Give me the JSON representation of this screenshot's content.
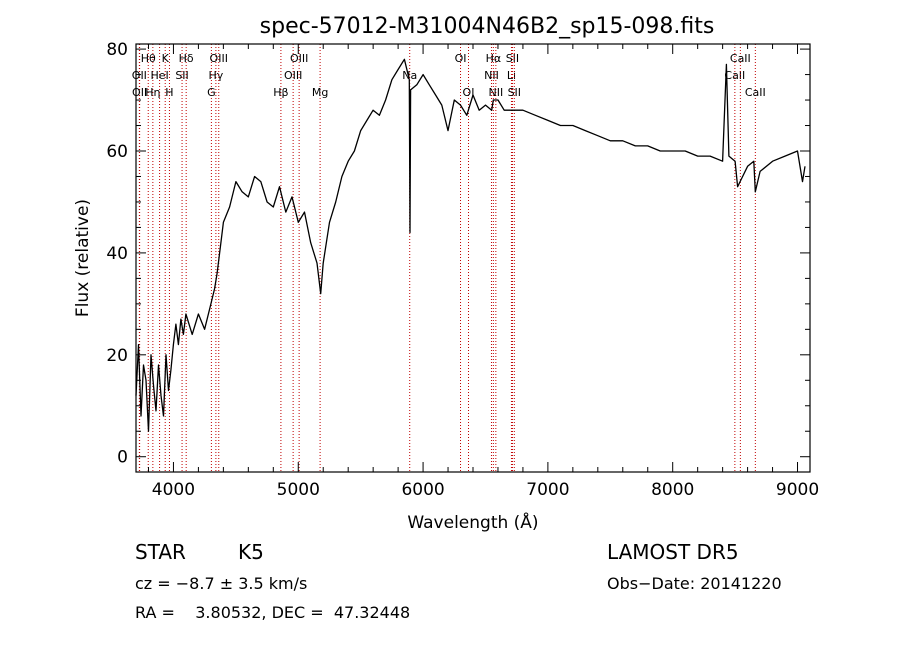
{
  "chart_data": {
    "type": "line",
    "title": "spec-57012-M31004N46B2_sp15-098.fits",
    "xlabel": "Wavelength (Å)",
    "ylabel": "Flux (relative)",
    "xlim": [
      3700,
      9100
    ],
    "ylim": [
      -3,
      81
    ],
    "x_ticks": [
      4000,
      5000,
      6000,
      7000,
      8000,
      9000
    ],
    "y_ticks": [
      0,
      20,
      40,
      60,
      80
    ],
    "grid": false,
    "series": [
      {
        "x": [
          3700,
          3720,
          3740,
          3760,
          3780,
          3800,
          3820,
          3840,
          3860,
          3880,
          3900,
          3920,
          3940,
          3960,
          3980,
          4000,
          4020,
          4040,
          4060,
          4080,
          4100,
          4150,
          4200,
          4250,
          4300,
          4330,
          4350,
          4380,
          4400,
          4450,
          4500,
          4550,
          4600,
          4650,
          4700,
          4750,
          4800,
          4850,
          4900,
          4950,
          5000,
          5050,
          5100,
          5150,
          5180,
          5200,
          5250,
          5300,
          5350,
          5400,
          5450,
          5500,
          5550,
          5600,
          5650,
          5700,
          5750,
          5800,
          5850,
          5890,
          5895,
          5900,
          5950,
          6000,
          6050,
          6100,
          6150,
          6200,
          6250,
          6300,
          6350,
          6400,
          6450,
          6500,
          6550,
          6563,
          6600,
          6650,
          6700,
          6800,
          6900,
          7000,
          7100,
          7200,
          7300,
          7400,
          7500,
          7600,
          7700,
          7800,
          7900,
          8000,
          8100,
          8200,
          8300,
          8400,
          8430,
          8450,
          8500,
          8520,
          8540,
          8600,
          8650,
          8662,
          8700,
          8800,
          8900,
          9000,
          9040,
          9060
        ],
        "y": [
          12,
          22,
          8,
          18,
          15,
          5,
          20,
          14,
          9,
          18,
          12,
          8,
          20,
          13,
          17,
          22,
          26,
          22,
          27,
          24,
          28,
          24,
          28,
          25,
          30,
          33,
          36,
          42,
          46,
          49,
          54,
          52,
          51,
          55,
          54,
          50,
          49,
          53,
          48,
          51,
          46,
          48,
          42,
          38,
          32,
          38,
          46,
          50,
          55,
          58,
          60,
          64,
          66,
          68,
          67,
          70,
          74,
          76,
          78,
          74,
          44,
          72,
          73,
          75,
          73,
          71,
          69,
          64,
          70,
          69,
          67,
          71,
          68,
          69,
          68,
          70,
          70,
          68,
          68,
          68,
          67,
          66,
          65,
          65,
          64,
          63,
          62,
          62,
          61,
          61,
          60,
          60,
          60,
          59,
          59,
          58,
          77,
          59,
          58,
          53,
          54,
          57,
          58,
          52,
          56,
          58,
          59,
          60,
          54,
          57
        ]
      }
    ],
    "annotations": [
      {
        "label": "OII",
        "x": 3727,
        "row": 2
      },
      {
        "label": "OII",
        "x": 3729,
        "row": 3
      },
      {
        "label": "Hθ",
        "x": 3798,
        "row": 1
      },
      {
        "label": "Hη",
        "x": 3835,
        "row": 3
      },
      {
        "label": "HeI",
        "x": 3889,
        "row": 2
      },
      {
        "label": "K",
        "x": 3934,
        "row": 1
      },
      {
        "label": "H",
        "x": 3968,
        "row": 3
      },
      {
        "label": "SII",
        "x": 4069,
        "row": 2
      },
      {
        "label": "Hδ",
        "x": 4102,
        "row": 1
      },
      {
        "label": "Hγ",
        "x": 4340,
        "row": 2
      },
      {
        "label": "G",
        "x": 4304,
        "row": 3
      },
      {
        "label": "OIII",
        "x": 4363,
        "row": 1
      },
      {
        "label": "Hβ",
        "x": 4861,
        "row": 3
      },
      {
        "label": "OIII",
        "x": 4959,
        "row": 2
      },
      {
        "label": "OIII",
        "x": 5007,
        "row": 1
      },
      {
        "label": "Mg",
        "x": 5175,
        "row": 3
      },
      {
        "label": "Na",
        "x": 5893,
        "row": 2
      },
      {
        "label": "OI",
        "x": 6300,
        "row": 1
      },
      {
        "label": "OI",
        "x": 6364,
        "row": 3
      },
      {
        "label": "NII",
        "x": 6548,
        "row": 2
      },
      {
        "label": "NII",
        "x": 6583,
        "row": 3
      },
      {
        "label": "Hα",
        "x": 6563,
        "row": 1
      },
      {
        "label": "Li",
        "x": 6708,
        "row": 2
      },
      {
        "label": "SII",
        "x": 6716,
        "row": 1
      },
      {
        "label": "SII",
        "x": 6731,
        "row": 3
      },
      {
        "label": "CaII",
        "x": 8498,
        "row": 2
      },
      {
        "label": "CaII",
        "x": 8542,
        "row": 1
      },
      {
        "label": "CaII",
        "x": 8662,
        "row": 3
      }
    ]
  },
  "info": {
    "class_label": "STAR",
    "subclass": "K5",
    "survey": "LAMOST DR5",
    "cz_line": "cz = −8.7 ± 3.5 km/s",
    "obs_date": "Obs−Date: 20141220",
    "coord_line": "RA =    3.80532, DEC =  47.32448"
  }
}
